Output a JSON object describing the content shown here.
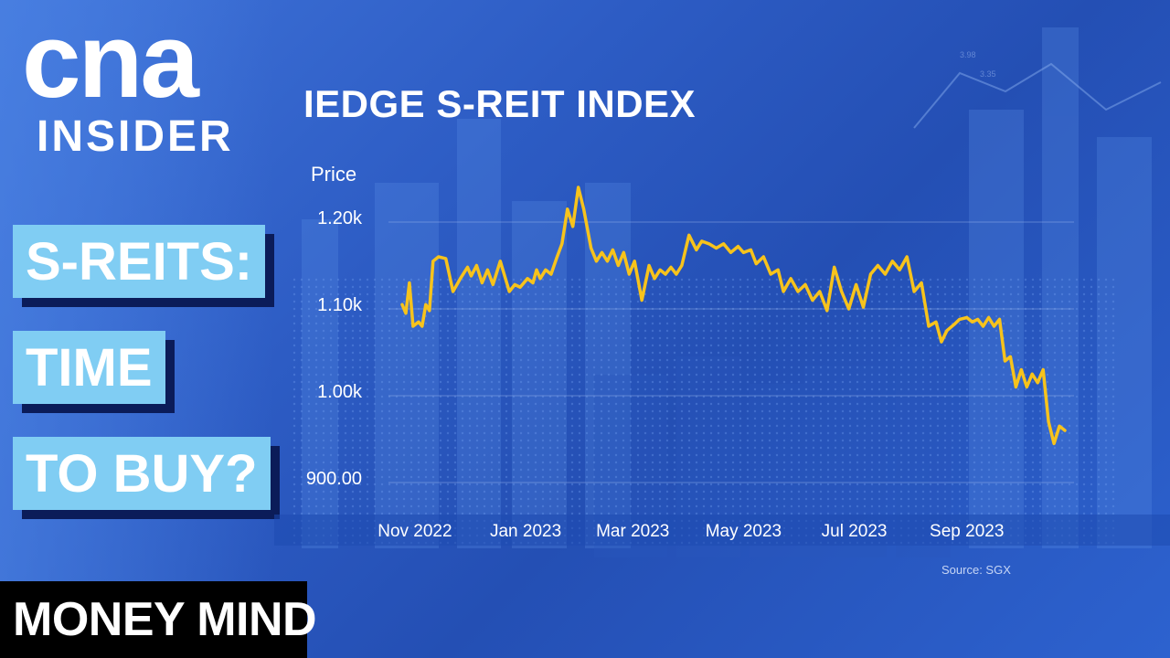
{
  "logo": {
    "main": "cna",
    "sub": "INSIDER"
  },
  "headline": [
    "S-REITS:",
    "TIME",
    "TO BUY?"
  ],
  "brand": "MONEY MIND",
  "source": "Source: SGX",
  "colors": {
    "line": "#f7c31c",
    "headline_bg": "#80cdf3",
    "shadow": "#0b1c59",
    "band": "#1e4bb0"
  },
  "chart_data": {
    "type": "line",
    "title": "IEDGE S-REIT INDEX",
    "ylabel": "Price",
    "xlabel": "",
    "ylim": [
      880,
      1230
    ],
    "yticks": [
      {
        "value": 1200,
        "label": "1.20k"
      },
      {
        "value": 1100,
        "label": "1.10k"
      },
      {
        "value": 1000,
        "label": "1.00k"
      },
      {
        "value": 900,
        "label": "900.00"
      }
    ],
    "xticks": [
      {
        "x": "2022-11-01",
        "label": "Nov 2022"
      },
      {
        "x": "2023-01-01",
        "label": "Jan 2023"
      },
      {
        "x": "2023-03-01",
        "label": "Mar 2023"
      },
      {
        "x": "2023-05-01",
        "label": "May 2023"
      },
      {
        "x": "2023-07-01",
        "label": "Jul 2023"
      },
      {
        "x": "2023-09-01",
        "label": "Sep 2023"
      }
    ],
    "xlim": [
      "2022-10-18",
      "2023-11-10"
    ],
    "grid": true,
    "series": [
      {
        "color": "#f7c31c",
        "points": [
          [
            "2022-10-25",
            1105
          ],
          [
            "2022-10-27",
            1095
          ],
          [
            "2022-10-29",
            1130
          ],
          [
            "2022-10-31",
            1080
          ],
          [
            "2022-11-03",
            1085
          ],
          [
            "2022-11-05",
            1080
          ],
          [
            "2022-11-07",
            1105
          ],
          [
            "2022-11-09",
            1098
          ],
          [
            "2022-11-11",
            1155
          ],
          [
            "2022-11-14",
            1160
          ],
          [
            "2022-11-18",
            1158
          ],
          [
            "2022-11-22",
            1120
          ],
          [
            "2022-11-26",
            1135
          ],
          [
            "2022-11-30",
            1148
          ],
          [
            "2022-12-02",
            1138
          ],
          [
            "2022-12-05",
            1150
          ],
          [
            "2022-12-08",
            1130
          ],
          [
            "2022-12-11",
            1145
          ],
          [
            "2022-12-14",
            1128
          ],
          [
            "2022-12-18",
            1155
          ],
          [
            "2022-12-23",
            1120
          ],
          [
            "2022-12-26",
            1128
          ],
          [
            "2022-12-29",
            1125
          ],
          [
            "2023-01-02",
            1135
          ],
          [
            "2023-01-05",
            1130
          ],
          [
            "2023-01-07",
            1145
          ],
          [
            "2023-01-09",
            1135
          ],
          [
            "2023-01-12",
            1145
          ],
          [
            "2023-01-15",
            1140
          ],
          [
            "2023-01-18",
            1158
          ],
          [
            "2023-01-21",
            1175
          ],
          [
            "2023-01-24",
            1215
          ],
          [
            "2023-01-27",
            1195
          ],
          [
            "2023-01-30",
            1240
          ],
          [
            "2023-02-02",
            1215
          ],
          [
            "2023-02-06",
            1170
          ],
          [
            "2023-02-09",
            1155
          ],
          [
            "2023-02-12",
            1165
          ],
          [
            "2023-02-15",
            1155
          ],
          [
            "2023-02-18",
            1168
          ],
          [
            "2023-02-21",
            1150
          ],
          [
            "2023-02-24",
            1165
          ],
          [
            "2023-02-27",
            1140
          ],
          [
            "2023-03-02",
            1155
          ],
          [
            "2023-03-06",
            1110
          ],
          [
            "2023-03-10",
            1150
          ],
          [
            "2023-03-13",
            1135
          ],
          [
            "2023-03-16",
            1145
          ],
          [
            "2023-03-19",
            1140
          ],
          [
            "2023-03-22",
            1148
          ],
          [
            "2023-03-25",
            1140
          ],
          [
            "2023-03-28",
            1150
          ],
          [
            "2023-04-01",
            1185
          ],
          [
            "2023-04-05",
            1168
          ],
          [
            "2023-04-08",
            1178
          ],
          [
            "2023-04-12",
            1175
          ],
          [
            "2023-04-16",
            1170
          ],
          [
            "2023-04-20",
            1175
          ],
          [
            "2023-04-24",
            1165
          ],
          [
            "2023-04-28",
            1172
          ],
          [
            "2023-05-01",
            1165
          ],
          [
            "2023-05-05",
            1168
          ],
          [
            "2023-05-08",
            1152
          ],
          [
            "2023-05-12",
            1160
          ],
          [
            "2023-05-16",
            1140
          ],
          [
            "2023-05-20",
            1145
          ],
          [
            "2023-05-23",
            1120
          ],
          [
            "2023-05-27",
            1135
          ],
          [
            "2023-05-31",
            1120
          ],
          [
            "2023-06-04",
            1128
          ],
          [
            "2023-06-08",
            1110
          ],
          [
            "2023-06-12",
            1120
          ],
          [
            "2023-06-16",
            1098
          ],
          [
            "2023-06-20",
            1148
          ],
          [
            "2023-06-24",
            1120
          ],
          [
            "2023-06-28",
            1100
          ],
          [
            "2023-07-02",
            1128
          ],
          [
            "2023-07-06",
            1102
          ],
          [
            "2023-07-10",
            1140
          ],
          [
            "2023-07-14",
            1150
          ],
          [
            "2023-07-18",
            1140
          ],
          [
            "2023-07-22",
            1155
          ],
          [
            "2023-07-26",
            1145
          ],
          [
            "2023-07-30",
            1160
          ],
          [
            "2023-08-03",
            1120
          ],
          [
            "2023-08-07",
            1130
          ],
          [
            "2023-08-11",
            1080
          ],
          [
            "2023-08-15",
            1085
          ],
          [
            "2023-08-18",
            1062
          ],
          [
            "2023-08-21",
            1075
          ],
          [
            "2023-08-25",
            1082
          ],
          [
            "2023-08-28",
            1088
          ],
          [
            "2023-09-01",
            1090
          ],
          [
            "2023-09-04",
            1085
          ],
          [
            "2023-09-07",
            1088
          ],
          [
            "2023-09-10",
            1080
          ],
          [
            "2023-09-13",
            1090
          ],
          [
            "2023-09-16",
            1080
          ],
          [
            "2023-09-19",
            1088
          ],
          [
            "2023-09-22",
            1040
          ],
          [
            "2023-09-25",
            1045
          ],
          [
            "2023-09-28",
            1010
          ],
          [
            "2023-10-01",
            1030
          ],
          [
            "2023-10-04",
            1010
          ],
          [
            "2023-10-07",
            1025
          ],
          [
            "2023-10-10",
            1015
          ],
          [
            "2023-10-13",
            1030
          ],
          [
            "2023-10-16",
            970
          ],
          [
            "2023-10-19",
            945
          ],
          [
            "2023-10-22",
            965
          ],
          [
            "2023-10-25",
            960
          ]
        ]
      }
    ]
  }
}
